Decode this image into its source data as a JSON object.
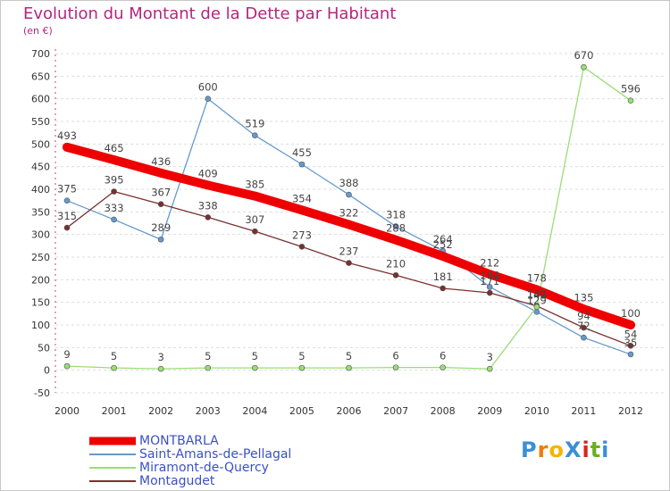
{
  "title": "Evolution du Montant de la Dette par Habitant",
  "subtitle": "(en €)",
  "logo": "ProXiti",
  "chart_data": {
    "type": "line",
    "title": "Evolution du Montant de la Dette par Habitant",
    "subtitle": "(en €)",
    "categories": [
      "2000",
      "2001",
      "2002",
      "2003",
      "2004",
      "2005",
      "2006",
      "2007",
      "2008",
      "2009",
      "2010",
      "2011",
      "2012"
    ],
    "ylim": [
      -50,
      700
    ],
    "yticks": [
      -50,
      0,
      50,
      100,
      150,
      200,
      250,
      300,
      350,
      400,
      450,
      500,
      550,
      600,
      650,
      700
    ],
    "grid": "dashed horizontal",
    "legend": "bottom-left",
    "series": [
      {
        "name": "MONTBARLA",
        "color": "#ee0000",
        "values": [
          493,
          465,
          436,
          409,
          385,
          354,
          322,
          288,
          252,
          212,
          178,
          135,
          100
        ]
      },
      {
        "name": "Saint-Amans-de-Pellagal",
        "color": "#6699cc",
        "values": [
          375,
          333,
          289,
          600,
          519,
          455,
          388,
          318,
          264,
          184,
          129,
          72,
          35
        ]
      },
      {
        "name": "Miramont-de-Quercy",
        "color": "#99dd77",
        "values": [
          9,
          5,
          3,
          5,
          5,
          5,
          5,
          6,
          6,
          3,
          140,
          670,
          596
        ]
      },
      {
        "name": "Montagudet",
        "color": "#7a3030",
        "values": [
          315,
          395,
          367,
          338,
          307,
          273,
          237,
          210,
          181,
          171,
          142,
          94,
          54
        ]
      }
    ]
  }
}
